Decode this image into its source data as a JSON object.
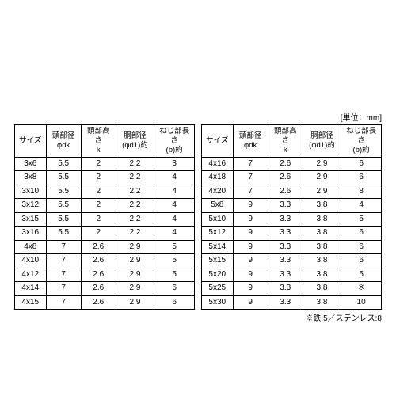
{
  "unit_label": "[単位：mm]",
  "columns": [
    {
      "line1": "サイズ",
      "line2": ""
    },
    {
      "line1": "頭部径",
      "line2": "φdk"
    },
    {
      "line1": "頭部高さ",
      "line2": "k"
    },
    {
      "line1": "胴部径",
      "line2": "(φd1)約"
    },
    {
      "line1": "ねじ部長さ",
      "line2": "(b)約"
    }
  ],
  "left_rows": [
    [
      "3x6",
      "5.5",
      "2",
      "2.2",
      "3"
    ],
    [
      "3x8",
      "5.5",
      "2",
      "2.2",
      "4"
    ],
    [
      "3x10",
      "5.5",
      "2",
      "2.2",
      "4"
    ],
    [
      "3x12",
      "5.5",
      "2",
      "2.2",
      "4"
    ],
    [
      "3x15",
      "5.5",
      "2",
      "2.2",
      "4"
    ],
    [
      "3x16",
      "5.5",
      "2",
      "2.2",
      "4"
    ],
    [
      "4x8",
      "7",
      "2.6",
      "2.9",
      "5"
    ],
    [
      "4x10",
      "7",
      "2.6",
      "2.9",
      "5"
    ],
    [
      "4x12",
      "7",
      "2.6",
      "2.9",
      "5"
    ],
    [
      "4x14",
      "7",
      "2.6",
      "2.9",
      "6"
    ],
    [
      "4x15",
      "7",
      "2.6",
      "2.9",
      "6"
    ]
  ],
  "right_rows": [
    [
      "4x16",
      "7",
      "2.6",
      "2.9",
      "6"
    ],
    [
      "4x18",
      "7",
      "2.6",
      "2.9",
      "6"
    ],
    [
      "4x20",
      "7",
      "2.6",
      "2.9",
      "8"
    ],
    [
      "5x8",
      "9",
      "3.3",
      "3.8",
      "4"
    ],
    [
      "5x10",
      "9",
      "3.3",
      "3.8",
      "5"
    ],
    [
      "5x12",
      "9",
      "3.3",
      "3.8",
      "6"
    ],
    [
      "5x14",
      "9",
      "3.3",
      "3.8",
      "6"
    ],
    [
      "5x15",
      "9",
      "3.3",
      "3.8",
      "6"
    ],
    [
      "5x20",
      "9",
      "3.3",
      "3.8",
      "5"
    ],
    [
      "5x25",
      "9",
      "3.3",
      "3.8",
      "※"
    ],
    [
      "5x30",
      "9",
      "3.3",
      "3.8",
      "10"
    ]
  ],
  "footnote": "※鉄:5／ステンレス:8",
  "style": {
    "background_color": "#ffffff",
    "border_color": "#000000",
    "text_color": "#000000",
    "font_size_body": 10,
    "font_size_header": 9.5
  }
}
